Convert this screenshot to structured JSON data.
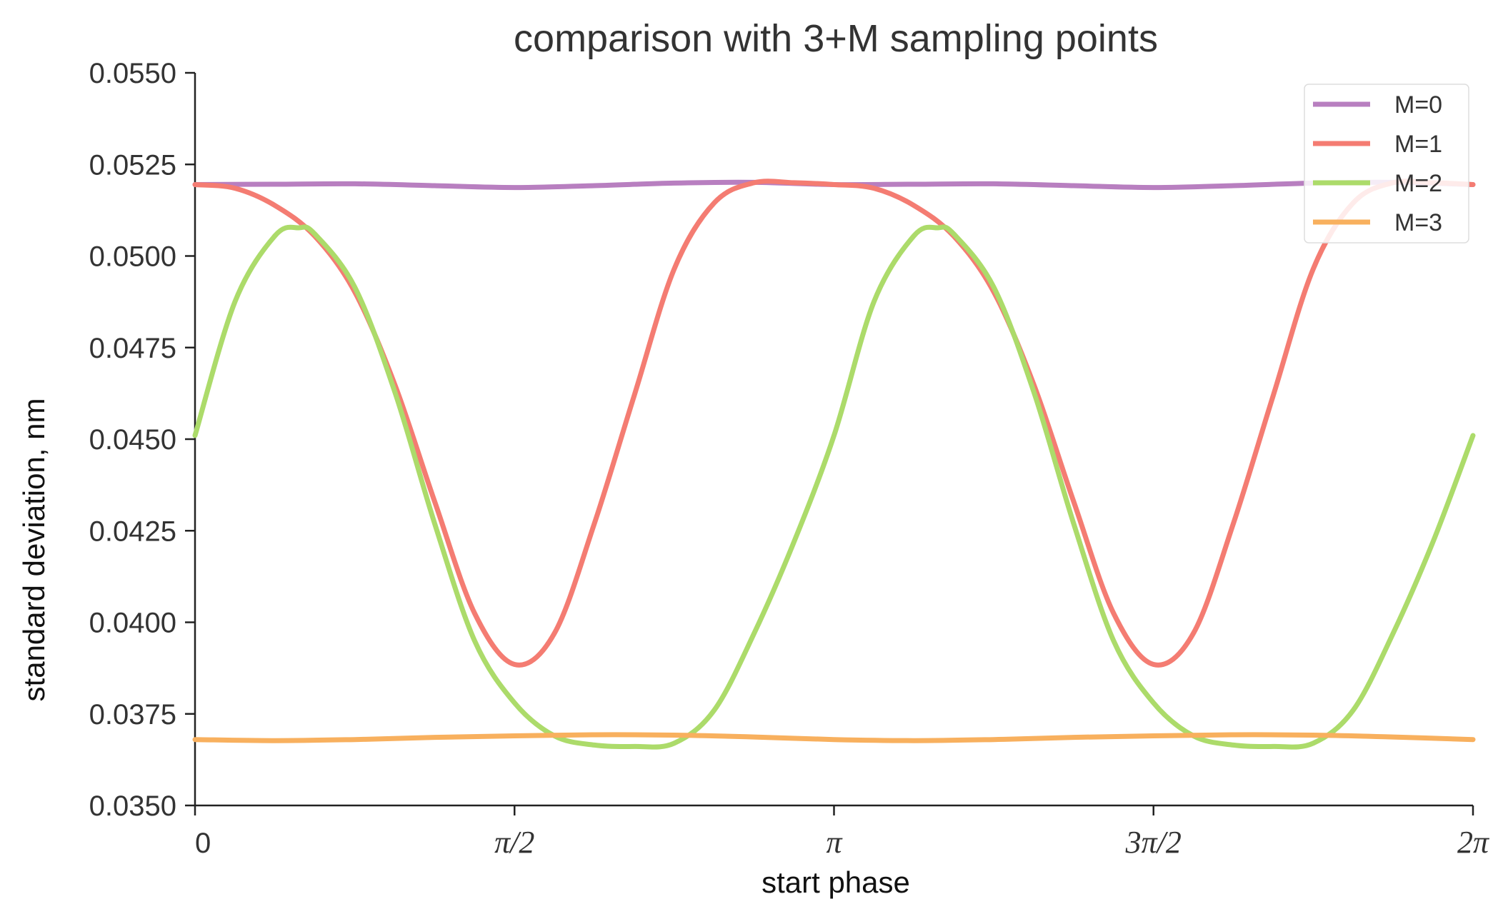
{
  "chart_data": {
    "type": "line",
    "title": "comparison with 3+M sampling points",
    "xlabel": "start phase",
    "ylabel": "standard deviation, nm",
    "xlim": [
      0,
      6.2832
    ],
    "ylim": [
      0.035,
      0.055
    ],
    "xticks": [
      {
        "value": 0,
        "label": "0"
      },
      {
        "value": 1.5708,
        "label": "π/2"
      },
      {
        "value": 3.1416,
        "label": "π"
      },
      {
        "value": 4.7124,
        "label": "3π/2"
      },
      {
        "value": 6.2832,
        "label": "2π"
      }
    ],
    "yticks": [
      {
        "value": 0.035,
        "label": "0.0350"
      },
      {
        "value": 0.0375,
        "label": "0.0375"
      },
      {
        "value": 0.04,
        "label": "0.0400"
      },
      {
        "value": 0.0425,
        "label": "0.0425"
      },
      {
        "value": 0.045,
        "label": "0.0450"
      },
      {
        "value": 0.0475,
        "label": "0.0475"
      },
      {
        "value": 0.05,
        "label": "0.0500"
      },
      {
        "value": 0.0525,
        "label": "0.0525"
      },
      {
        "value": 0.055,
        "label": "0.0550"
      }
    ],
    "grid": false,
    "legend_position": "top-right",
    "series": [
      {
        "name": "M=0",
        "color": "#b87fc0",
        "x": [
          0,
          0.3927,
          0.7854,
          1.1781,
          1.5708,
          1.9635,
          2.3562,
          2.7489,
          3.1416,
          3.5343,
          3.927,
          4.3197,
          4.7124,
          5.1051,
          5.4978,
          5.8905,
          6.2832
        ],
        "y": [
          0.05195,
          0.05196,
          0.05197,
          0.05192,
          0.05187,
          0.05192,
          0.05199,
          0.05201,
          0.05195,
          0.05196,
          0.05197,
          0.05192,
          0.05187,
          0.05192,
          0.05199,
          0.05201,
          0.05195
        ]
      },
      {
        "name": "M=1",
        "color": "#f47c72",
        "x": [
          0,
          0.1963,
          0.3927,
          0.589,
          0.7854,
          0.9817,
          1.1781,
          1.3744,
          1.5708,
          1.7671,
          1.9635,
          2.1598,
          2.3562,
          2.5525,
          2.7489,
          2.9452,
          3.1416,
          3.3379,
          3.5343,
          3.7306,
          3.927,
          4.1233,
          4.3197,
          4.516,
          4.7124,
          4.9087,
          5.1051,
          5.3014,
          5.4978,
          5.6941,
          5.8905,
          6.0868,
          6.2832
        ],
        "y": [
          0.05195,
          0.05185,
          0.05138,
          0.05054,
          0.04902,
          0.0465,
          0.0433,
          0.04025,
          0.03885,
          0.0397,
          0.0427,
          0.0462,
          0.04965,
          0.05145,
          0.052,
          0.052,
          0.05195,
          0.05185,
          0.05138,
          0.05054,
          0.04902,
          0.0465,
          0.0433,
          0.04025,
          0.03885,
          0.0397,
          0.0427,
          0.0462,
          0.04965,
          0.05145,
          0.052,
          0.052,
          0.05195
        ]
      },
      {
        "name": "M=2",
        "color": "#acdb6a",
        "x": [
          0,
          0.1963,
          0.3927,
          0.5105,
          0.589,
          0.7854,
          0.9817,
          1.1781,
          1.3744,
          1.5708,
          1.7671,
          1.9635,
          2.1598,
          2.3562,
          2.5525,
          2.7489,
          2.9452,
          3.1416,
          3.3379,
          3.5343,
          3.6521,
          3.7306,
          3.927,
          4.1233,
          4.3197,
          4.516,
          4.7124,
          4.9087,
          5.1051,
          5.3014,
          5.4978,
          5.6941,
          5.8905,
          6.0868,
          6.2832
        ],
        "y": [
          0.0451,
          0.04875,
          0.05055,
          0.05077,
          0.0506,
          0.04915,
          0.0463,
          0.0427,
          0.0395,
          0.0378,
          0.0369,
          0.03665,
          0.03661,
          0.0367,
          0.0376,
          0.0397,
          0.0422,
          0.0451,
          0.04875,
          0.05055,
          0.05077,
          0.0506,
          0.04915,
          0.0463,
          0.0427,
          0.0395,
          0.0378,
          0.0369,
          0.03665,
          0.03661,
          0.0367,
          0.0376,
          0.0397,
          0.0422,
          0.0451
        ]
      },
      {
        "name": "M=3",
        "color": "#f8b05e",
        "x": [
          0,
          0.3927,
          0.7854,
          1.1781,
          1.5708,
          1.9635,
          2.3562,
          2.7489,
          3.1416,
          3.5343,
          3.927,
          4.3197,
          4.7124,
          5.1051,
          5.4978,
          5.8905,
          6.2832
        ],
        "y": [
          0.0368,
          0.03677,
          0.0368,
          0.03686,
          0.0369,
          0.03693,
          0.03692,
          0.03687,
          0.0368,
          0.03677,
          0.0368,
          0.03686,
          0.0369,
          0.03693,
          0.03692,
          0.03687,
          0.0368
        ]
      }
    ]
  }
}
